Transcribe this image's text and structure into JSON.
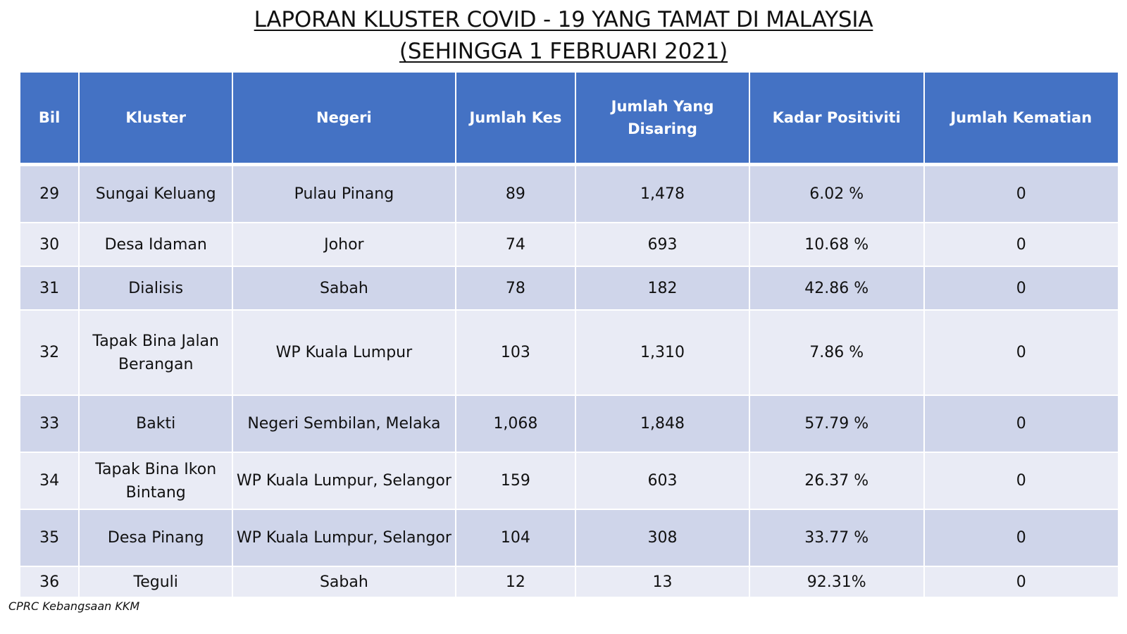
{
  "title": {
    "line1": "LAPORAN KLUSTER COVID - 19 YANG TAMAT DI MALAYSIA",
    "line2": "(SEHINGGA  1 FEBRUARI 2021)"
  },
  "colors": {
    "header_bg": "#4472c4",
    "row_dark": "#cfd5ea",
    "row_light": "#e9ebf5"
  },
  "table": {
    "headers": {
      "bil": "Bil",
      "kluster": "Kluster",
      "negeri": "Negeri",
      "jumlah_kes": "Jumlah Kes",
      "jumlah_disaring": "Jumlah Yang Disaring",
      "kadar_positiviti": "Kadar Positiviti",
      "jumlah_kematian": "Jumlah Kematian"
    },
    "rows": [
      {
        "bil": "29",
        "kluster": "Sungai Keluang",
        "negeri": "Pulau Pinang",
        "jumlah_kes": "89",
        "jumlah_disaring": "1,478",
        "kadar_positiviti": "6.02 %",
        "jumlah_kematian": "0"
      },
      {
        "bil": "30",
        "kluster": "Desa Idaman",
        "negeri": "Johor",
        "jumlah_kes": "74",
        "jumlah_disaring": "693",
        "kadar_positiviti": "10.68 %",
        "jumlah_kematian": "0"
      },
      {
        "bil": "31",
        "kluster": "Dialisis",
        "negeri": "Sabah",
        "jumlah_kes": "78",
        "jumlah_disaring": "182",
        "kadar_positiviti": "42.86 %",
        "jumlah_kematian": "0"
      },
      {
        "bil": "32",
        "kluster": "Tapak Bina Jalan Berangan",
        "negeri": "WP Kuala Lumpur",
        "jumlah_kes": "103",
        "jumlah_disaring": "1,310",
        "kadar_positiviti": "7.86 %",
        "jumlah_kematian": "0"
      },
      {
        "bil": "33",
        "kluster": "Bakti",
        "negeri": "Negeri Sembilan, Melaka",
        "jumlah_kes": "1,068",
        "jumlah_disaring": "1,848",
        "kadar_positiviti": "57.79 %",
        "jumlah_kematian": "0"
      },
      {
        "bil": "34",
        "kluster": "Tapak Bina Ikon Bintang",
        "negeri": "WP Kuala Lumpur, Selangor",
        "jumlah_kes": "159",
        "jumlah_disaring": "603",
        "kadar_positiviti": "26.37 %",
        "jumlah_kematian": "0"
      },
      {
        "bil": "35",
        "kluster": "Desa Pinang",
        "negeri": "WP Kuala Lumpur, Selangor",
        "jumlah_kes": "104",
        "jumlah_disaring": "308",
        "kadar_positiviti": "33.77 %",
        "jumlah_kematian": "0"
      },
      {
        "bil": "36",
        "kluster": "Teguli",
        "negeri": "Sabah",
        "jumlah_kes": "12",
        "jumlah_disaring": "13",
        "kadar_positiviti": "92.31%",
        "jumlah_kematian": "0"
      }
    ]
  },
  "footer": {
    "source": "CPRC Kebangsaan KKM"
  }
}
